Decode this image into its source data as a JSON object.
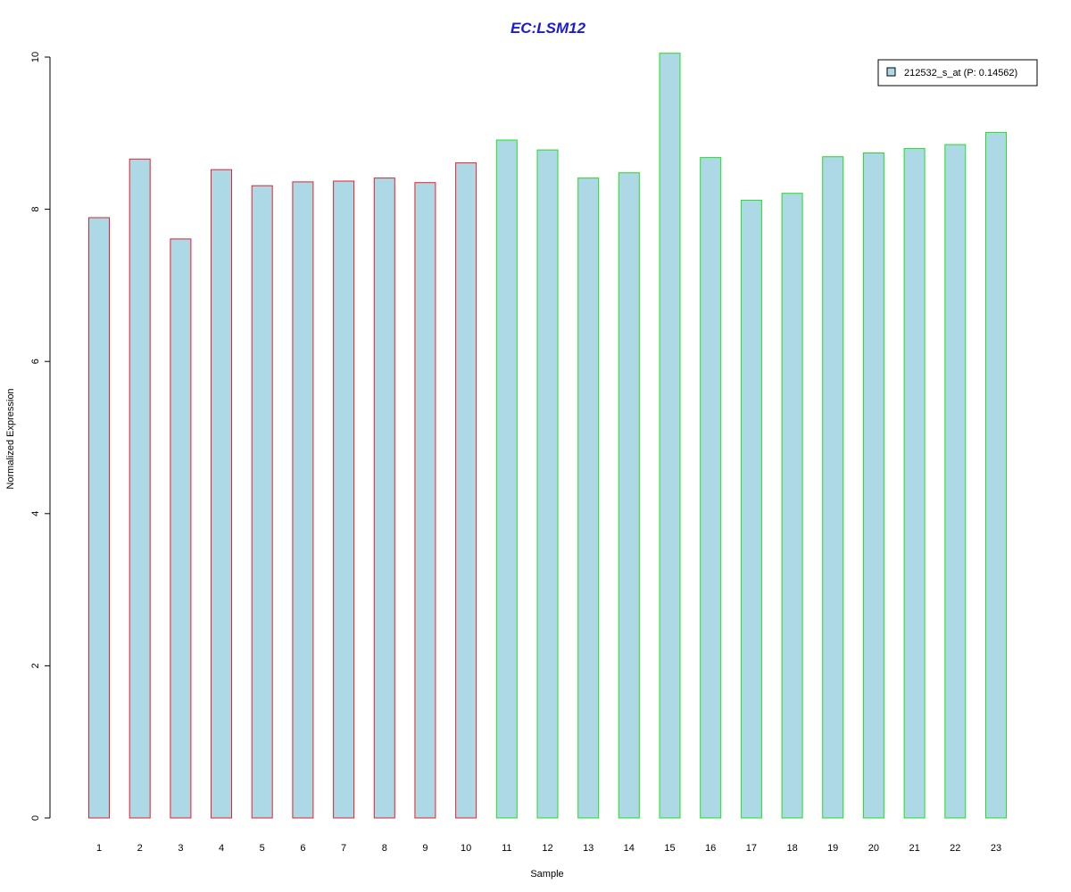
{
  "chart_data": {
    "type": "bar",
    "title": "EC:LSM12",
    "xlabel": "Sample",
    "ylabel": "Normalized Expression",
    "categories": [
      "1",
      "2",
      "3",
      "4",
      "5",
      "6",
      "7",
      "8",
      "9",
      "10",
      "11",
      "12",
      "13",
      "14",
      "15",
      "16",
      "17",
      "18",
      "19",
      "20",
      "21",
      "22",
      "23"
    ],
    "series": [
      {
        "name": "212532_s_at (P: 0.14562)",
        "values": [
          7.89,
          8.66,
          7.61,
          8.52,
          8.31,
          8.36,
          8.37,
          8.41,
          8.35,
          8.61,
          8.91,
          8.78,
          8.41,
          8.48,
          10.05,
          8.68,
          8.12,
          8.21,
          8.69,
          8.74,
          8.8,
          8.85,
          9.01
        ]
      }
    ],
    "groups": [
      {
        "range": [
          1,
          10
        ],
        "border_color": "#e8202a"
      },
      {
        "range": [
          11,
          23
        ],
        "border_color": "#20e020"
      }
    ],
    "ylim": [
      0,
      10
    ],
    "yticks": [
      0,
      2,
      4,
      6,
      8,
      10
    ],
    "legend_position": "top-right",
    "grid": false,
    "colors": {
      "bar_fill": "#add8e6",
      "title": "#1a1ad6"
    }
  }
}
